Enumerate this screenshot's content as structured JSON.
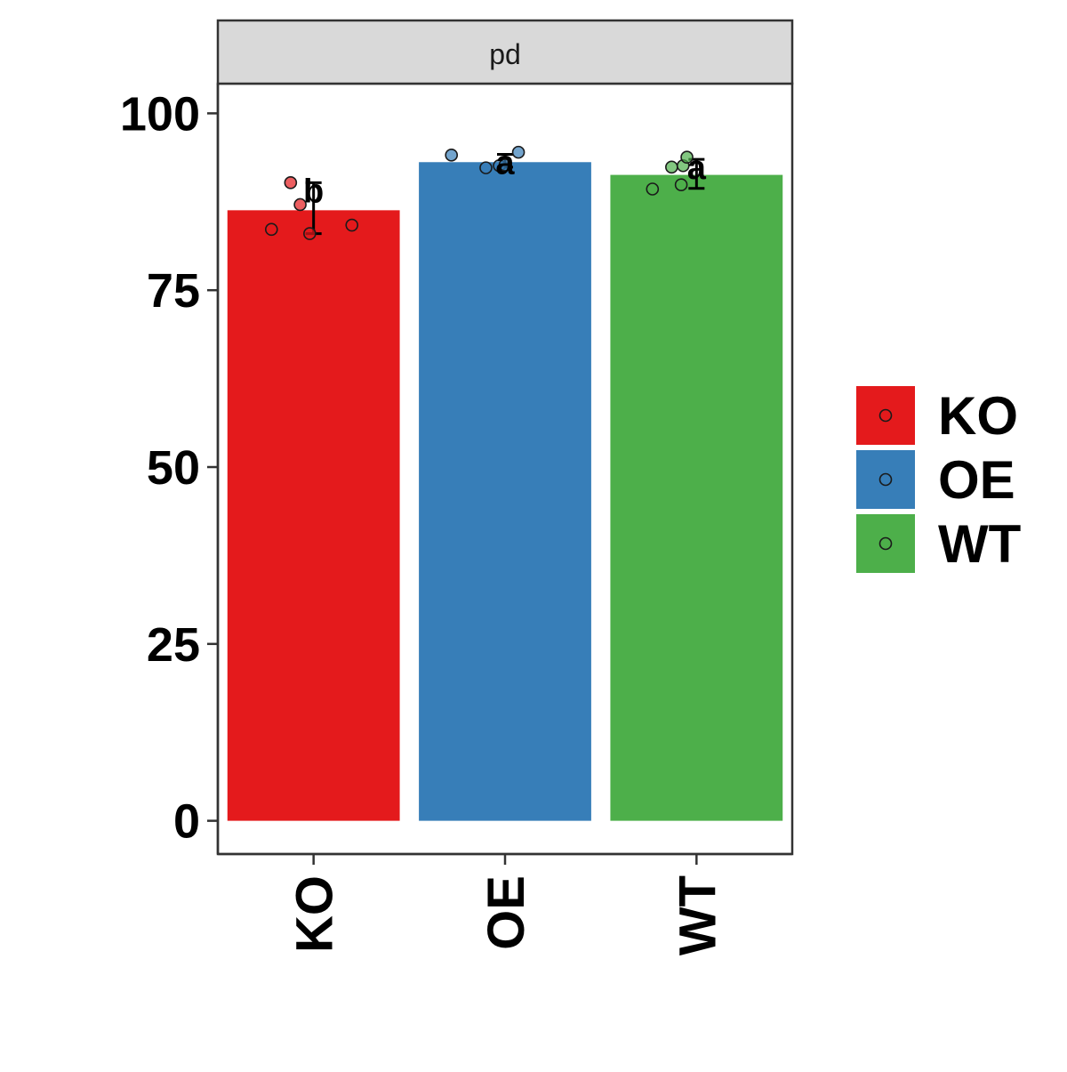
{
  "chart_data": {
    "type": "bar",
    "facet_label": "pd",
    "categories": [
      "KO",
      "OE",
      "WT"
    ],
    "values": [
      86.3,
      93.1,
      91.3
    ],
    "error_bars": [
      {
        "low": 83.0,
        "high": 90.2
      },
      {
        "low": 92.4,
        "high": 94.2
      },
      {
        "low": 89.4,
        "high": 93.5
      }
    ],
    "significance_letters": [
      "b",
      "a",
      "a"
    ],
    "points": [
      [
        83.0,
        83.6,
        84.2,
        87.1,
        90.2
      ],
      [
        92.3,
        92.6,
        92.7,
        94.1,
        94.5
      ],
      [
        89.3,
        89.9,
        92.4,
        92.6,
        93.8
      ]
    ],
    "point_jitter": [
      [
        -0.02,
        -0.22,
        0.2,
        -0.07,
        -0.12
      ],
      [
        -0.1,
        -0.03,
        0.0,
        -0.28,
        0.07
      ],
      [
        -0.23,
        -0.08,
        -0.13,
        -0.07,
        -0.05
      ]
    ],
    "colors": {
      "KO": "#E41A1C",
      "OE": "#377EB8",
      "WT": "#4DAF4A"
    },
    "ylim": [
      -4.7,
      104.2
    ],
    "yticks": [
      0,
      25,
      50,
      75,
      100
    ],
    "xlabel": "",
    "ylabel": "",
    "legend": {
      "position": "right",
      "entries": [
        "KO",
        "OE",
        "WT"
      ]
    },
    "grid": false
  }
}
